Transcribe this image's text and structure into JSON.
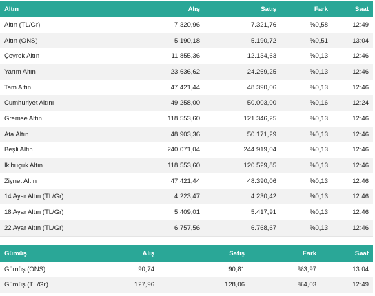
{
  "gold": {
    "headers": [
      "Altın",
      "Alış",
      "Satış",
      "Fark",
      "Saat"
    ],
    "rows": [
      [
        "Altın (TL/Gr)",
        "7.320,96",
        "7.321,76",
        "%0,58",
        "12:49"
      ],
      [
        "Altın (ONS)",
        "5.190,18",
        "5.190,72",
        "%0,51",
        "13:04"
      ],
      [
        "Çeyrek Altın",
        "11.855,36",
        "12.134,63",
        "%0,13",
        "12:46"
      ],
      [
        "Yarım Altın",
        "23.636,62",
        "24.269,25",
        "%0,13",
        "12:46"
      ],
      [
        "Tam Altın",
        "47.421,44",
        "48.390,06",
        "%0,13",
        "12:46"
      ],
      [
        "Cumhuriyet Altını",
        "49.258,00",
        "50.003,00",
        "%0,16",
        "12:24"
      ],
      [
        "Gremse Altın",
        "118.553,60",
        "121.346,25",
        "%0,13",
        "12:46"
      ],
      [
        "Ata Altın",
        "48.903,36",
        "50.171,29",
        "%0,13",
        "12:46"
      ],
      [
        "Beşli Altın",
        "240.071,04",
        "244.919,04",
        "%0,13",
        "12:46"
      ],
      [
        "İkibuçuk Altın",
        "118.553,60",
        "120.529,85",
        "%0,13",
        "12:46"
      ],
      [
        "Ziynet Altın",
        "47.421,44",
        "48.390,06",
        "%0,13",
        "12:46"
      ],
      [
        "14 Ayar Altın (TL/Gr)",
        "4.223,47",
        "4.230,42",
        "%0,13",
        "12:46"
      ],
      [
        "18 Ayar Altın (TL/Gr)",
        "5.409,01",
        "5.417,91",
        "%0,13",
        "12:46"
      ],
      [
        "22 Ayar Altın (TL/Gr)",
        "6.757,56",
        "6.768,67",
        "%0,13",
        "12:46"
      ]
    ]
  },
  "silver": {
    "headers": [
      "Gümüş",
      "Alış",
      "Satış",
      "Fark",
      "Saat"
    ],
    "rows": [
      [
        "Gümüş (ONS)",
        "90,74",
        "90,81",
        "%3,97",
        "13:04"
      ],
      [
        "Gümüş (TL/Gr)",
        "127,96",
        "128,06",
        "%4,03",
        "12:49"
      ]
    ]
  },
  "colors": {
    "header_bg": "#2aa797",
    "header_text": "#ffffff",
    "row_alt_bg": "#f2f2f2"
  }
}
